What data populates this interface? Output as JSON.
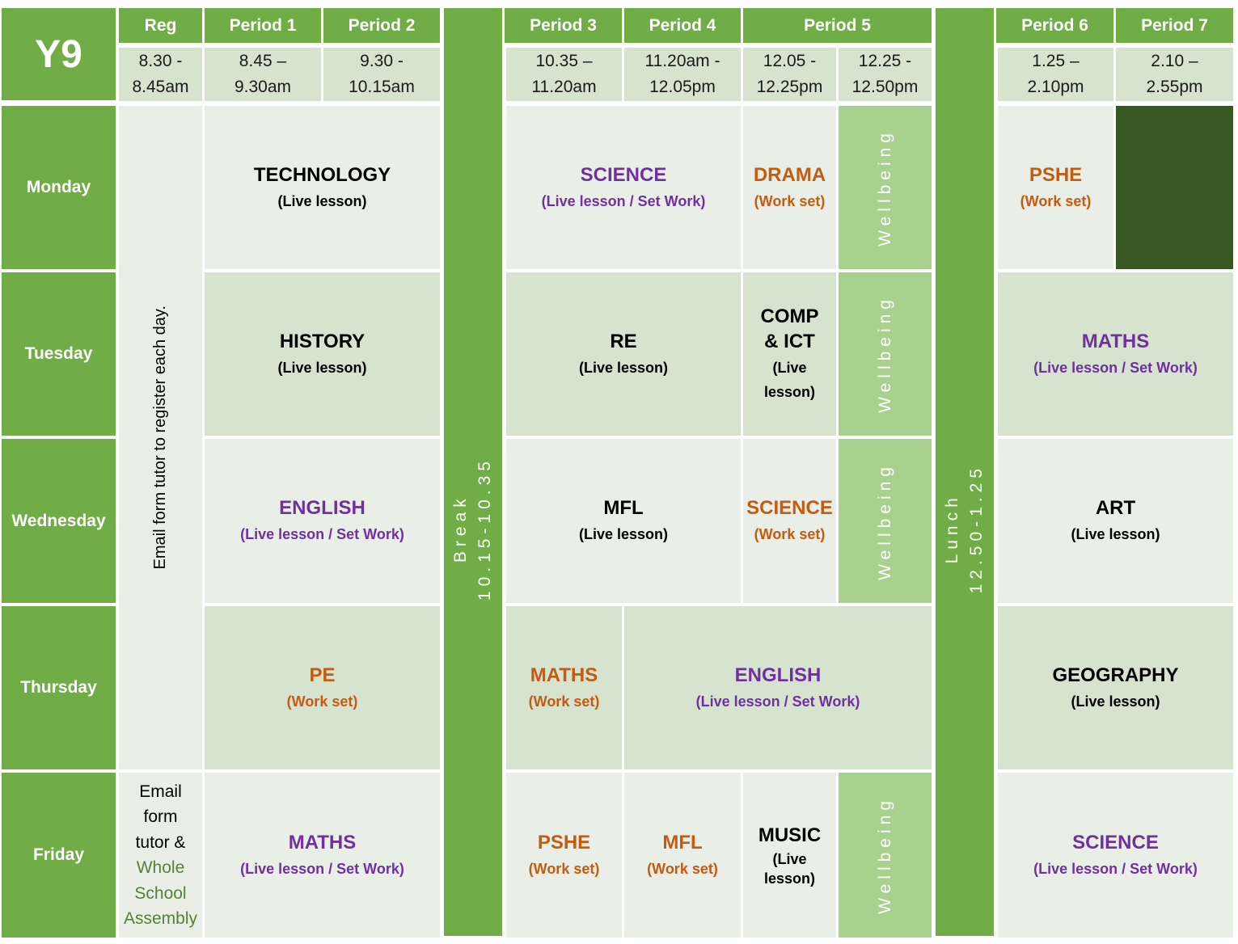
{
  "year": "Y9",
  "headers": {
    "reg": "Reg",
    "p1": "Period 1",
    "p2": "Period 2",
    "p3": "Period 3",
    "p4": "Period 4",
    "p5": "Period 5",
    "p6": "Period 6",
    "p7": "Period 7"
  },
  "times": {
    "reg": [
      "8.30 -",
      "8.45am"
    ],
    "p1": [
      "8.45 –",
      "9.30am"
    ],
    "p2": [
      "9.30 -",
      "10.15am"
    ],
    "p3": [
      "10.35 –",
      "11.20am"
    ],
    "p4": [
      "11.20am -",
      "12.05pm"
    ],
    "p5a": [
      "12.05 -",
      "12.25pm"
    ],
    "p5b": [
      "12.25 -",
      "12.50pm"
    ],
    "p6": [
      "1.25 –",
      "2.10pm"
    ],
    "p7": [
      "2.10 –",
      "2.55pm"
    ]
  },
  "days": [
    "Monday",
    "Tuesday",
    "Wednesday",
    "Thursday",
    "Friday"
  ],
  "break_label": [
    "Break",
    "10.15-10.35"
  ],
  "lunch_label": [
    "Lunch",
    "12.50-1.25"
  ],
  "wellbeing": "Wellbeing",
  "registration_note": "Email form  tutor to register each day.",
  "friday_reg": {
    "lines": [
      "Email",
      "form",
      "tutor &"
    ],
    "assembly": [
      "Whole",
      "School",
      "Assembly"
    ]
  },
  "notes": {
    "live": "(Live lesson)",
    "live_set": "(Live lesson / Set Work)",
    "work_set": "(Work set)",
    "live_split": [
      "(Live",
      "lesson)"
    ]
  },
  "lessons": {
    "mon_p12": "TECHNOLOGY",
    "mon_p34": "SCIENCE",
    "mon_p5": "DRAMA",
    "mon_p6": "PSHE",
    "tue_p12": "HISTORY",
    "tue_p34": "RE",
    "tue_p5": [
      "COMP",
      "& ICT"
    ],
    "tue_p67": "MATHS",
    "wed_p12": "ENGLISH",
    "wed_p34": "MFL",
    "wed_p5": "SCIENCE",
    "wed_p67": "ART",
    "thu_p12": "PE",
    "thu_p3": "MATHS",
    "thu_p45": "ENGLISH",
    "thu_p67": "GEOGRAPHY",
    "fri_p12": "MATHS",
    "fri_p3": "PSHE",
    "fri_p4": "MFL",
    "fri_p5": "MUSIC",
    "fri_p67": "SCIENCE"
  },
  "colors": {
    "header_green": "#70ad47",
    "light_cell": "#e9efe6",
    "mid_cell": "#d6e3cf",
    "wellbeing_green": "#a9d18e",
    "dark_green": "#385723",
    "purple": "#7030a0",
    "orange": "#c55a11"
  }
}
